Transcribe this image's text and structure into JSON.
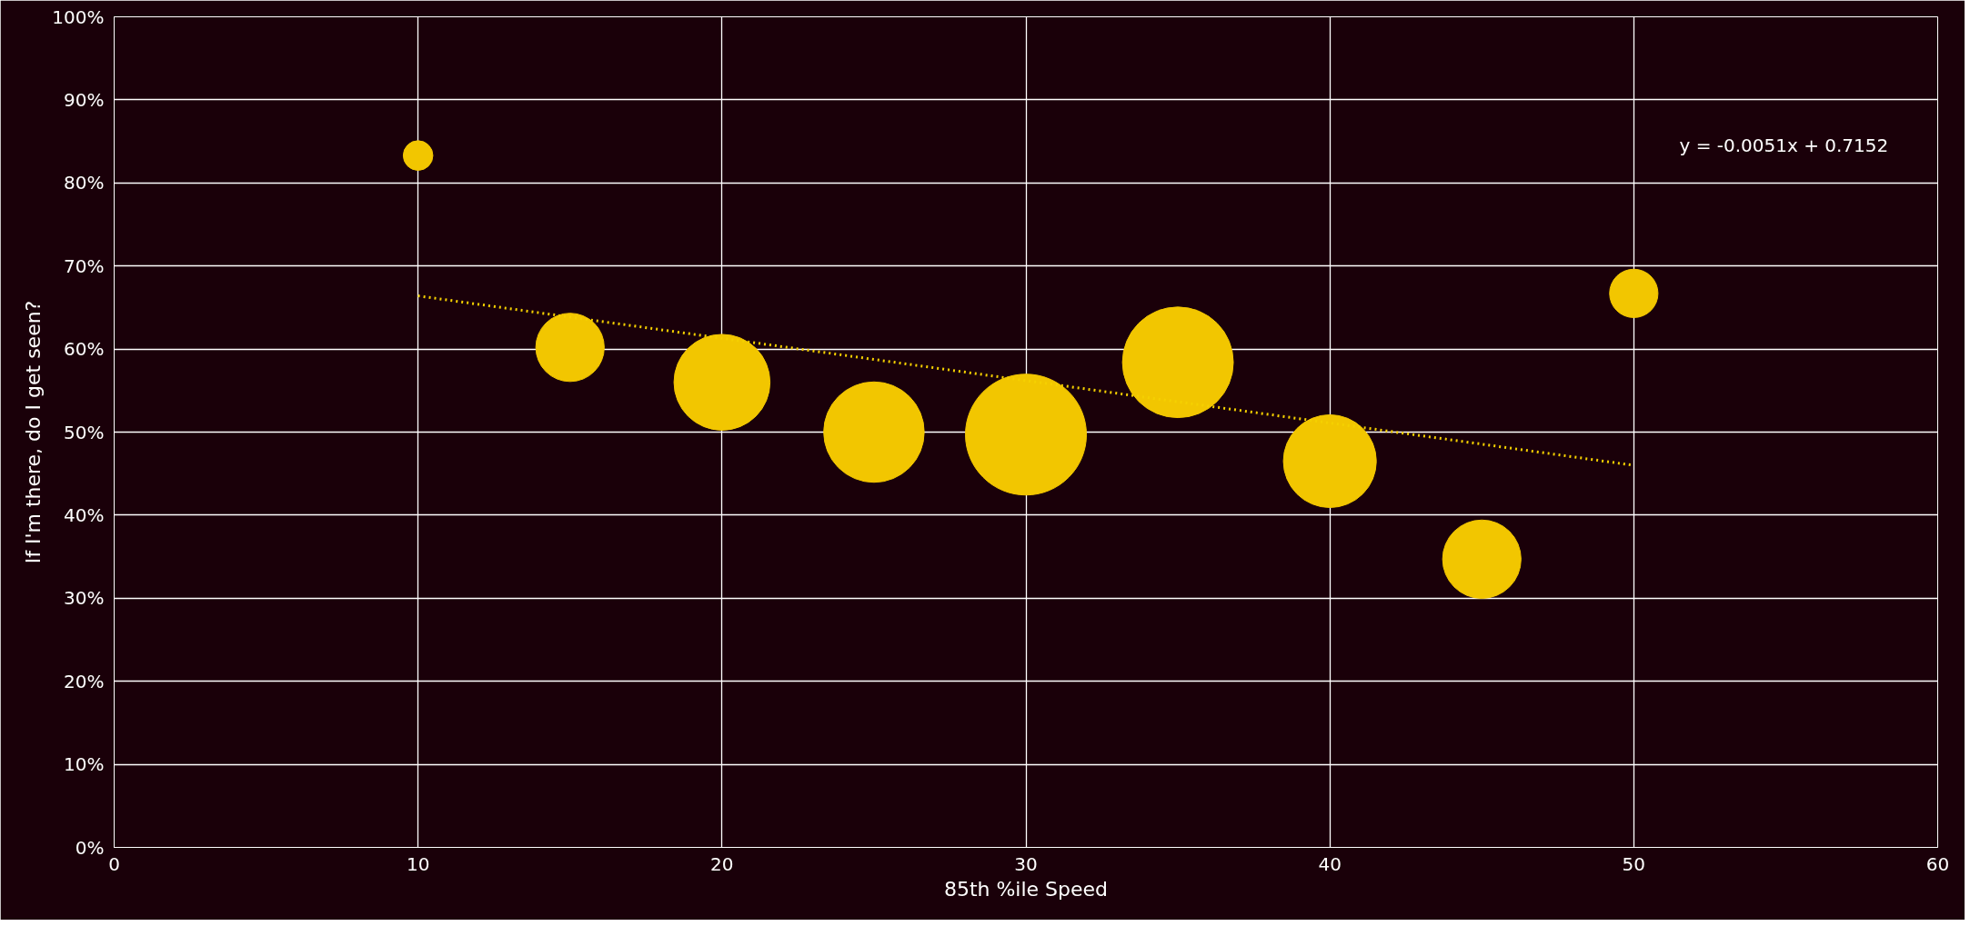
{
  "chart_data": {
    "type": "bubble",
    "xlabel": "85th %ile Speed",
    "ylabel": "If I'm there, do I get seen?",
    "annotations": [
      "y = -0.0051x + 0.7152"
    ],
    "xlim": [
      0,
      60
    ],
    "xticks": [
      0,
      10,
      20,
      30,
      40,
      50,
      60
    ],
    "ylim": [
      0,
      1
    ],
    "yticks": [
      {
        "value": 0,
        "label": "0%"
      },
      {
        "value": 0.1,
        "label": "10%"
      },
      {
        "value": 0.2,
        "label": "20%"
      },
      {
        "value": 0.3,
        "label": "30%"
      },
      {
        "value": 0.4,
        "label": "40%"
      },
      {
        "value": 0.5,
        "label": "50%"
      },
      {
        "value": 0.6,
        "label": "60%"
      },
      {
        "value": 0.7,
        "label": "70%"
      },
      {
        "value": 0.8,
        "label": "80%"
      },
      {
        "value": 0.9,
        "label": "90%"
      },
      {
        "value": 1,
        "label": "100%"
      }
    ],
    "grid": true,
    "series": [
      {
        "color": "#f2c600",
        "x": [
          10,
          15,
          20,
          25,
          30,
          35,
          40,
          45,
          50
        ],
        "values": [
          0.833,
          0.602,
          0.56,
          0.5,
          0.497,
          0.584,
          0.465,
          0.347,
          0.667
        ],
        "sizes": [
          0.06,
          0.32,
          0.63,
          0.69,
          1,
          0.84,
          0.59,
          0.42,
          0.16
        ]
      },
      {
        "type": "line",
        "color": "#f5d000",
        "line_style": "dotted",
        "x": [
          10,
          50
        ],
        "values": [
          0.664,
          0.46
        ]
      }
    ]
  }
}
